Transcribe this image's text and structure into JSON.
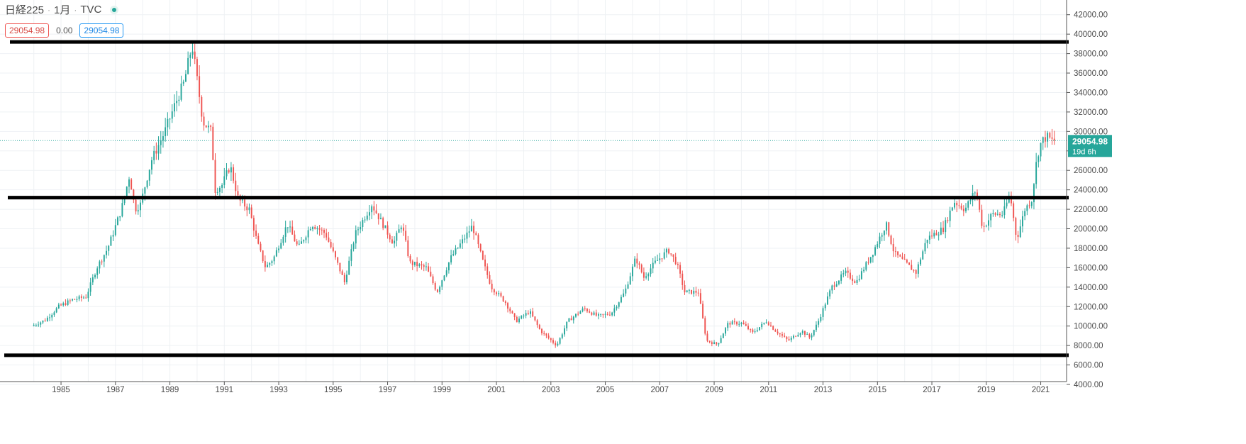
{
  "legend": {
    "symbol": "日経225",
    "interval": "1月",
    "source": "TVC",
    "separator": "·"
  },
  "ohlc_boxes": {
    "open_value": "29054.98",
    "change": "0.00",
    "close_value": "29054.98"
  },
  "price_label": {
    "value": "29054.98",
    "countdown": "19d 6h"
  },
  "colors": {
    "up": "#26a69a",
    "down": "#ef5350",
    "grid": "#eef1f4",
    "level_line": "#000000",
    "price_badge": "#26a69a"
  },
  "chart_data": {
    "type": "candlestick",
    "title": "日経225",
    "interval": "1月",
    "source": "TVC",
    "y_axis_position": "right",
    "ylim": [
      4000,
      43000
    ],
    "y_ticks": [
      "4000.00",
      "6000.00",
      "8000.00",
      "10000.00",
      "12000.00",
      "14000.00",
      "16000.00",
      "18000.00",
      "20000.00",
      "22000.00",
      "24000.00",
      "26000.00",
      "28000.00",
      "30000.00",
      "32000.00",
      "34000.00",
      "36000.00",
      "38000.00",
      "40000.00",
      "42000.00"
    ],
    "x_ticks": [
      "1985",
      "1987",
      "1989",
      "1991",
      "1993",
      "1995",
      "1997",
      "1999",
      "2001",
      "2003",
      "2005",
      "2007",
      "2009",
      "2011",
      "2013",
      "2015",
      "2017",
      "2019",
      "2021"
    ],
    "xlim": [
      1983.8,
      2021.95
    ],
    "grid": true,
    "last_price": 29054.98,
    "horizontal_lines": [
      39200,
      23200,
      7000
    ],
    "path_points": [
      [
        1984.0,
        10000
      ],
      [
        1984.5,
        10600
      ],
      [
        1985.0,
        12000
      ],
      [
        1985.5,
        12700
      ],
      [
        1986.0,
        13000
      ],
      [
        1986.4,
        16000
      ],
      [
        1986.8,
        18000
      ],
      [
        1987.3,
        22000
      ],
      [
        1987.6,
        25500
      ],
      [
        1987.8,
        22000
      ],
      [
        1988.0,
        22500
      ],
      [
        1988.4,
        27000
      ],
      [
        1988.9,
        30000
      ],
      [
        1989.3,
        33000
      ],
      [
        1989.6,
        35000
      ],
      [
        1989.9,
        38900
      ],
      [
        1990.3,
        31000
      ],
      [
        1990.6,
        30000
      ],
      [
        1990.75,
        24000
      ],
      [
        1991.0,
        24500
      ],
      [
        1991.3,
        26500
      ],
      [
        1991.6,
        23000
      ],
      [
        1992.0,
        22000
      ],
      [
        1992.3,
        18500
      ],
      [
        1992.6,
        16000
      ],
      [
        1992.9,
        17000
      ],
      [
        1993.4,
        20500
      ],
      [
        1993.8,
        18000
      ],
      [
        1994.3,
        20500
      ],
      [
        1994.8,
        19500
      ],
      [
        1995.3,
        16000
      ],
      [
        1995.5,
        14500
      ],
      [
        1995.9,
        19500
      ],
      [
        1996.5,
        22500
      ],
      [
        1996.9,
        20500
      ],
      [
        1997.3,
        18500
      ],
      [
        1997.6,
        20500
      ],
      [
        1997.9,
        16500
      ],
      [
        1998.5,
        16000
      ],
      [
        1998.9,
        13500
      ],
      [
        1999.4,
        17000
      ],
      [
        1999.9,
        19000
      ],
      [
        2000.2,
        20300
      ],
      [
        2000.6,
        16500
      ],
      [
        2000.9,
        14000
      ],
      [
        2001.4,
        12500
      ],
      [
        2001.8,
        10500
      ],
      [
        2002.3,
        11500
      ],
      [
        2002.7,
        9500
      ],
      [
        2003.3,
        8000
      ],
      [
        2003.7,
        10500
      ],
      [
        2004.3,
        11800
      ],
      [
        2004.8,
        11000
      ],
      [
        2005.3,
        11300
      ],
      [
        2005.8,
        13500
      ],
      [
        2006.2,
        17000
      ],
      [
        2006.5,
        15000
      ],
      [
        2006.9,
        16500
      ],
      [
        2007.4,
        17800
      ],
      [
        2007.7,
        16500
      ],
      [
        2008.0,
        13500
      ],
      [
        2008.5,
        13500
      ],
      [
        2008.8,
        8500
      ],
      [
        2009.2,
        8100
      ],
      [
        2009.6,
        10300
      ],
      [
        2010.1,
        10300
      ],
      [
        2010.5,
        9300
      ],
      [
        2011.0,
        10500
      ],
      [
        2011.3,
        9600
      ],
      [
        2011.8,
        8500
      ],
      [
        2012.3,
        9500
      ],
      [
        2012.6,
        8800
      ],
      [
        2012.9,
        10400
      ],
      [
        2013.4,
        14000
      ],
      [
        2013.9,
        15500
      ],
      [
        2014.3,
        14500
      ],
      [
        2014.9,
        17500
      ],
      [
        2015.4,
        20500
      ],
      [
        2015.7,
        17500
      ],
      [
        2016.1,
        16500
      ],
      [
        2016.5,
        15500
      ],
      [
        2016.9,
        19000
      ],
      [
        2017.5,
        20000
      ],
      [
        2017.9,
        22800
      ],
      [
        2018.3,
        22000
      ],
      [
        2018.7,
        24000
      ],
      [
        2018.95,
        20000
      ],
      [
        2019.3,
        21500
      ],
      [
        2019.7,
        21500
      ],
      [
        2019.95,
        23600
      ],
      [
        2020.2,
        18900
      ],
      [
        2020.5,
        22000
      ],
      [
        2020.75,
        23000
      ],
      [
        2020.95,
        27400
      ],
      [
        2021.1,
        28900
      ],
      [
        2021.3,
        29500
      ],
      [
        2021.5,
        29055
      ]
    ]
  }
}
